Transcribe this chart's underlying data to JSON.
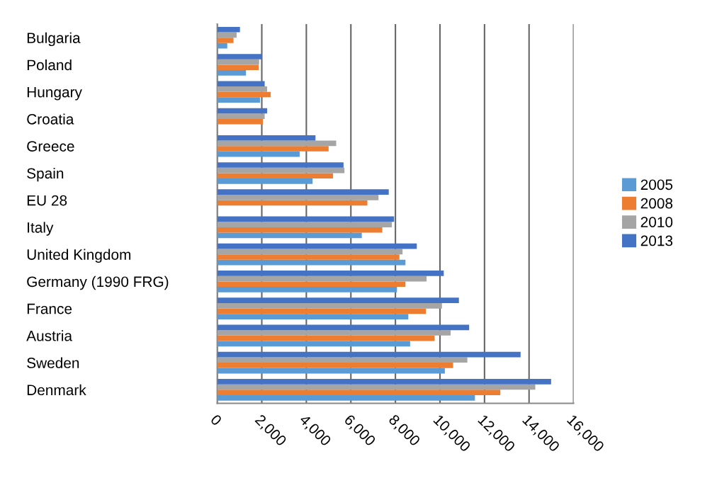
{
  "chart_data": {
    "type": "bar",
    "orientation": "horizontal",
    "categories": [
      "Bulgaria",
      "Poland",
      "Hungary",
      "Croatia",
      "Greece",
      "Spain",
      "EU 28",
      "Italy",
      "United Kingdom",
      "Germany (1990 FRG)",
      "France",
      "Austria",
      "Sweden",
      "Denmark"
    ],
    "series": [
      {
        "name": "2005",
        "color": "#5b9bd5",
        "values": [
          450,
          1290,
          1920,
          null,
          3700,
          4280,
          null,
          6490,
          8450,
          8070,
          8580,
          8660,
          10220,
          11570
        ]
      },
      {
        "name": "2008",
        "color": "#ed7d31",
        "values": [
          730,
          1860,
          2400,
          2050,
          5000,
          5200,
          6740,
          7410,
          8180,
          8450,
          9370,
          9760,
          10590,
          12710
        ]
      },
      {
        "name": "2010",
        "color": "#a5a5a5",
        "values": [
          870,
          1880,
          2240,
          2130,
          5340,
          5710,
          7240,
          7840,
          8320,
          9400,
          10090,
          10480,
          11230,
          14280
        ]
      },
      {
        "name": "2013",
        "color": "#4472c4",
        "values": [
          1020,
          2000,
          2130,
          2240,
          4410,
          5670,
          7700,
          7940,
          8960,
          10170,
          10850,
          11310,
          13620,
          14990
        ]
      }
    ],
    "xlim": [
      0,
      16000
    ],
    "xticks": [
      0,
      {
        "value": 2000,
        "label": "2,000"
      },
      {
        "value": 4000,
        "label": "4,000"
      },
      {
        "value": 6000,
        "label": "6,000"
      },
      {
        "value": 8000,
        "label": "8,000"
      },
      {
        "value": 10000,
        "label": "10,000"
      },
      {
        "value": 12000,
        "label": "12,000"
      },
      {
        "value": 14000,
        "label": "14,000"
      },
      {
        "value": 16000,
        "label": "16,000"
      }
    ],
    "grid": "x",
    "legend": "right"
  }
}
